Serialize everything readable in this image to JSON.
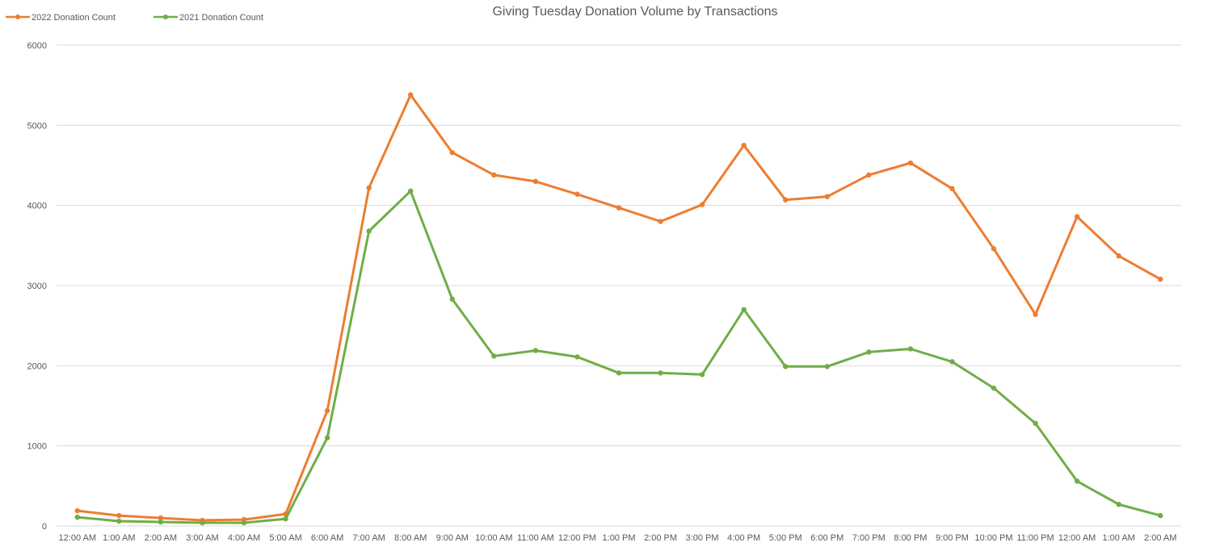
{
  "chart_data": {
    "type": "line",
    "title": "Giving Tuesday Donation Volume by Transactions",
    "xlabel": "",
    "ylabel": "",
    "ylim": [
      0,
      6000
    ],
    "yticks": [
      0,
      1000,
      2000,
      3000,
      4000,
      5000,
      6000
    ],
    "grid": true,
    "legend_position": "top-left",
    "categories": [
      "12:00 AM",
      "1:00 AM",
      "2:00 AM",
      "3:00 AM",
      "4:00 AM",
      "5:00 AM",
      "6:00 AM",
      "7:00 AM",
      "8:00 AM",
      "9:00 AM",
      "10:00 AM",
      "11:00 AM",
      "12:00 PM",
      "1:00 PM",
      "2:00 PM",
      "3:00 PM",
      "4:00 PM",
      "5:00 PM",
      "6:00 PM",
      "7:00 PM",
      "8:00 PM",
      "9:00 PM",
      "10:00 PM",
      "11:00 PM",
      "12:00 AM",
      "1:00 AM",
      "2:00 AM"
    ],
    "series": [
      {
        "name": "2022 Donation Count",
        "color": "#ED7D31",
        "values": [
          190,
          130,
          100,
          70,
          80,
          150,
          1440,
          4220,
          5380,
          4660,
          4380,
          4300,
          4140,
          3970,
          3800,
          4010,
          4750,
          4070,
          4110,
          4380,
          4530,
          4210,
          3460,
          2640,
          3860,
          3370,
          3080
        ]
      },
      {
        "name": "2021 Donation Count",
        "color": "#70AD47",
        "values": [
          110,
          60,
          50,
          40,
          40,
          90,
          1100,
          3680,
          4180,
          2830,
          2120,
          2190,
          2110,
          1910,
          1910,
          1890,
          2700,
          1990,
          1990,
          2170,
          2210,
          2050,
          1720,
          1280,
          560,
          270,
          130
        ]
      }
    ]
  }
}
